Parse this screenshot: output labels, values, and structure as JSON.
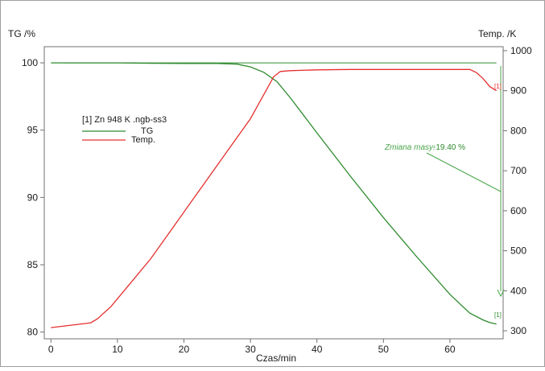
{
  "chart_data": {
    "type": "line",
    "ylabel_left": "TG /%",
    "ylabel_right": "Temp. /K",
    "xlabel": "Czas/min",
    "xlim": [
      -1,
      68
    ],
    "ylim_left": [
      79.5,
      101.2
    ],
    "ylim_right": [
      280,
      1010
    ],
    "x_ticks": [
      0,
      10,
      20,
      30,
      40,
      50,
      60
    ],
    "y_left_ticks": [
      80,
      85,
      90,
      95,
      100
    ],
    "y_right_ticks": [
      300,
      400,
      500,
      600,
      700,
      800,
      900,
      1000
    ],
    "legend_title": "[1] Zn 948 K .ngb-ss3",
    "legend_placement": "upper-left",
    "annotation": {
      "label": "Zmiana masy:",
      "value": "-19.40 %",
      "marker_left": "[1]",
      "marker_right": "[1]"
    },
    "series": [
      {
        "name": "TG",
        "axis": "left",
        "color": "#2e8b2e",
        "x": [
          0,
          5,
          10,
          15,
          20,
          25,
          28,
          30,
          32,
          34,
          36,
          38,
          40,
          45,
          50,
          55,
          60,
          63,
          65,
          66,
          67
        ],
        "y": [
          100.0,
          100.0,
          100.0,
          99.97,
          99.95,
          99.95,
          99.9,
          99.7,
          99.3,
          98.6,
          97.4,
          96.1,
          94.8,
          91.6,
          88.5,
          85.6,
          82.8,
          81.4,
          80.9,
          80.7,
          80.6
        ]
      },
      {
        "name": "Temp.",
        "axis": "right",
        "color": "#e53030",
        "x": [
          0,
          2,
          4,
          6,
          7,
          9,
          12,
          15,
          18,
          21,
          24,
          27,
          30,
          32,
          33.5,
          34.5,
          36,
          40,
          45,
          50,
          55,
          60,
          63,
          64,
          65,
          66,
          67
        ],
        "y": [
          308,
          312,
          316,
          320,
          330,
          360,
          420,
          480,
          550,
          620,
          690,
          760,
          830,
          890,
          935,
          948,
          950,
          952,
          953,
          953,
          953,
          953,
          953,
          945,
          930,
          910,
          900
        ]
      },
      {
        "name": "",
        "axis": "left",
        "color": "#2e8b2e",
        "x": [
          2,
          67
        ],
        "y": [
          100.0,
          100.0
        ]
      }
    ]
  }
}
